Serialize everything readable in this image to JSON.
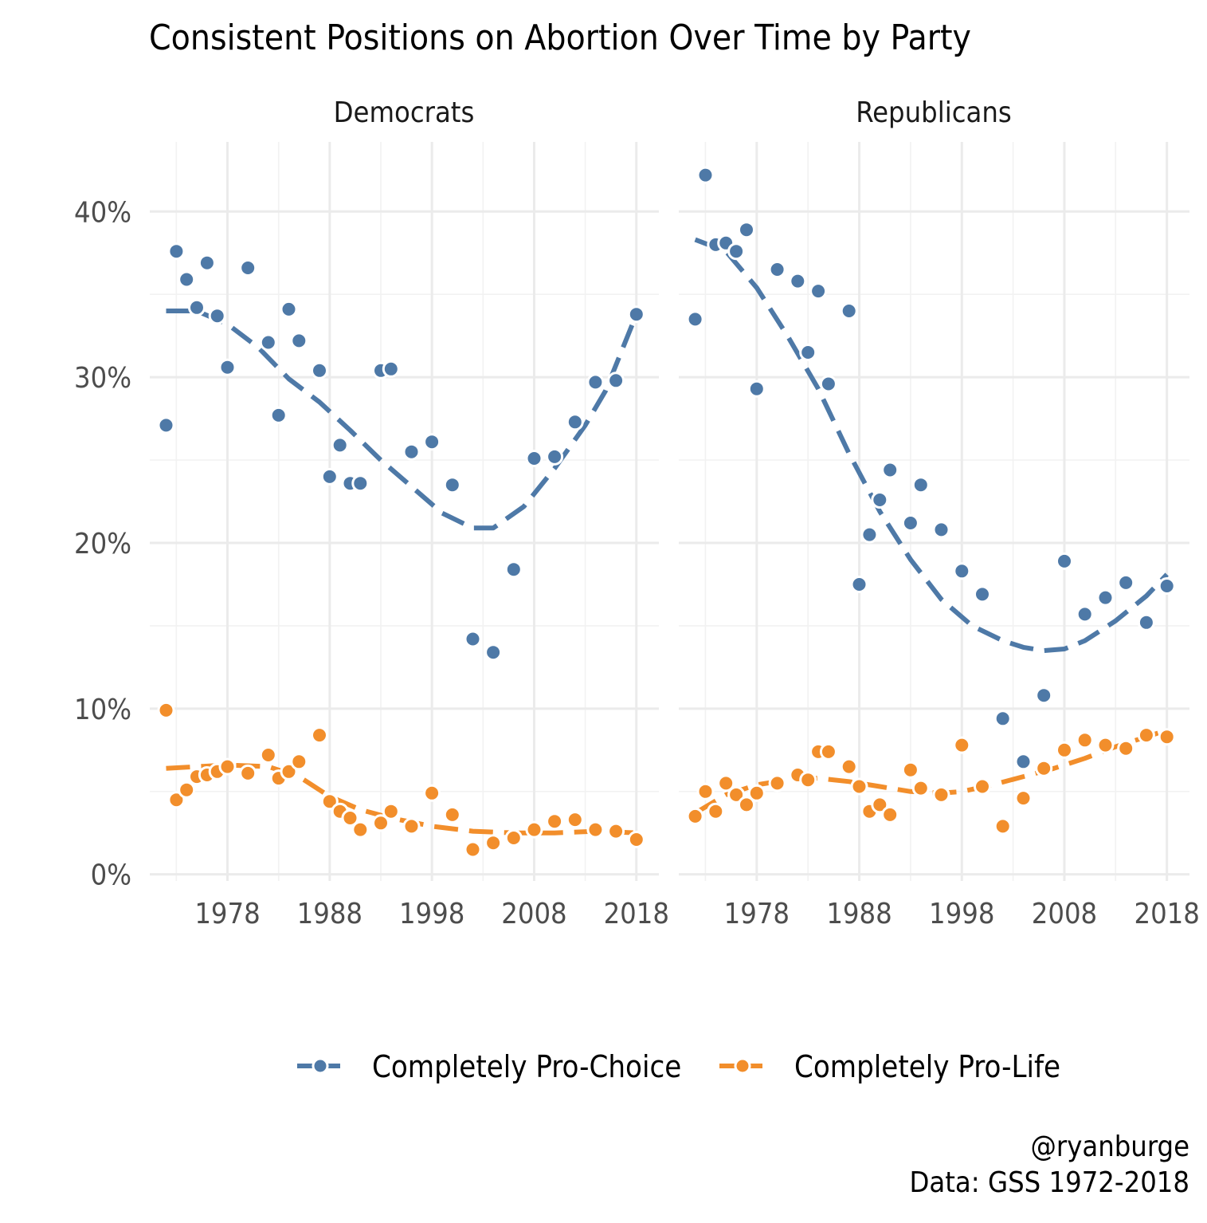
{
  "chart_data": {
    "type": "scatter",
    "title": "Consistent Positions on Abortion Over Time by Party",
    "facets": [
      "Democrats",
      "Republicans"
    ],
    "x_ticks": [
      1978,
      1988,
      1998,
      2008,
      2018
    ],
    "x_tick_labels": [
      "1978",
      "1988",
      "1998",
      "2008",
      "2018"
    ],
    "y_ticks": [
      0,
      10,
      20,
      30,
      40
    ],
    "y_tick_labels": [
      "0%",
      "10%",
      "20%",
      "30%",
      "40%"
    ],
    "xlim": [
      1970.4,
      2020.2
    ],
    "ylim": [
      -0.4,
      44.2
    ],
    "xlabel": "",
    "ylabel": "",
    "series": [
      {
        "name": "Completely Pro-Choice",
        "color": "#4e79a7",
        "line_style": "dashed smooth trend"
      },
      {
        "name": "Completely Pro-Life",
        "color": "#f28e2b",
        "line_style": "dashed smooth trend"
      }
    ],
    "panels": [
      {
        "facet": "Democrats",
        "points": {
          "Completely Pro-Choice": [
            [
              1972,
              27.1
            ],
            [
              1973,
              37.6
            ],
            [
              1974,
              35.9
            ],
            [
              1975,
              34.2
            ],
            [
              1976,
              36.9
            ],
            [
              1977,
              33.7
            ],
            [
              1978,
              30.6
            ],
            [
              1980,
              36.6
            ],
            [
              1982,
              32.1
            ],
            [
              1983,
              27.7
            ],
            [
              1984,
              34.1
            ],
            [
              1985,
              32.2
            ],
            [
              1987,
              30.4
            ],
            [
              1988,
              24.0
            ],
            [
              1989,
              25.9
            ],
            [
              1990,
              23.6
            ],
            [
              1991,
              23.6
            ],
            [
              1993,
              30.4
            ],
            [
              1994,
              30.5
            ],
            [
              1996,
              25.5
            ],
            [
              1998,
              26.1
            ],
            [
              2000,
              23.5
            ],
            [
              2002,
              14.2
            ],
            [
              2004,
              13.4
            ],
            [
              2006,
              18.4
            ],
            [
              2008,
              25.1
            ],
            [
              2010,
              25.2
            ],
            [
              2012,
              27.3
            ],
            [
              2014,
              29.7
            ],
            [
              2016,
              29.8
            ],
            [
              2018,
              33.8
            ]
          ],
          "Completely Pro-Life": [
            [
              1972,
              9.9
            ],
            [
              1973,
              4.5
            ],
            [
              1974,
              5.1
            ],
            [
              1975,
              5.9
            ],
            [
              1976,
              6.0
            ],
            [
              1977,
              6.2
            ],
            [
              1978,
              6.5
            ],
            [
              1980,
              6.1
            ],
            [
              1982,
              7.2
            ],
            [
              1983,
              5.8
            ],
            [
              1984,
              6.2
            ],
            [
              1985,
              6.8
            ],
            [
              1987,
              8.4
            ],
            [
              1988,
              4.4
            ],
            [
              1989,
              3.8
            ],
            [
              1990,
              3.4
            ],
            [
              1991,
              2.7
            ],
            [
              1993,
              3.1
            ],
            [
              1994,
              3.8
            ],
            [
              1996,
              2.9
            ],
            [
              1998,
              4.9
            ],
            [
              2000,
              3.6
            ],
            [
              2002,
              1.5
            ],
            [
              2004,
              1.9
            ],
            [
              2006,
              2.2
            ],
            [
              2008,
              2.7
            ],
            [
              2010,
              3.2
            ],
            [
              2012,
              3.3
            ],
            [
              2014,
              2.7
            ],
            [
              2016,
              2.6
            ],
            [
              2018,
              2.1
            ]
          ]
        },
        "trend": {
          "Completely Pro-Choice": [
            [
              1972,
              34.0
            ],
            [
              1973,
              34.0
            ],
            [
              1975,
              34.0
            ],
            [
              1978,
              33.2
            ],
            [
              1981,
              31.8
            ],
            [
              1984,
              29.9
            ],
            [
              1987,
              28.5
            ],
            [
              1990,
              26.8
            ],
            [
              1993,
              25.0
            ],
            [
              1996,
              23.4
            ],
            [
              1999,
              21.8
            ],
            [
              2002,
              20.9
            ],
            [
              2004,
              20.9
            ],
            [
              2007,
              22.2
            ],
            [
              2010,
              24.5
            ],
            [
              2013,
              27.1
            ],
            [
              2015,
              29.2
            ],
            [
              2018,
              33.8
            ]
          ],
          "Completely Pro-Life": [
            [
              1972,
              6.4
            ],
            [
              1975,
              6.5
            ],
            [
              1978,
              6.6
            ],
            [
              1982,
              6.5
            ],
            [
              1985,
              5.9
            ],
            [
              1988,
              4.7
            ],
            [
              1991,
              3.9
            ],
            [
              1994,
              3.4
            ],
            [
              1998,
              2.9
            ],
            [
              2002,
              2.6
            ],
            [
              2006,
              2.5
            ],
            [
              2010,
              2.5
            ],
            [
              2014,
              2.6
            ],
            [
              2018,
              2.5
            ]
          ]
        }
      },
      {
        "facet": "Republicans",
        "points": {
          "Completely Pro-Choice": [
            [
              1972,
              33.5
            ],
            [
              1973,
              42.2
            ],
            [
              1974,
              38.0
            ],
            [
              1975,
              38.1
            ],
            [
              1976,
              37.6
            ],
            [
              1977,
              38.9
            ],
            [
              1978,
              29.3
            ],
            [
              1980,
              36.5
            ],
            [
              1982,
              35.8
            ],
            [
              1983,
              31.5
            ],
            [
              1984,
              35.2
            ],
            [
              1985,
              29.6
            ],
            [
              1987,
              34.0
            ],
            [
              1988,
              17.5
            ],
            [
              1989,
              20.5
            ],
            [
              1990,
              22.6
            ],
            [
              1991,
              24.4
            ],
            [
              1993,
              21.2
            ],
            [
              1994,
              23.5
            ],
            [
              1996,
              20.8
            ],
            [
              1998,
              18.3
            ],
            [
              2000,
              16.9
            ],
            [
              2002,
              9.4
            ],
            [
              2004,
              6.8
            ],
            [
              2006,
              10.8
            ],
            [
              2008,
              18.9
            ],
            [
              2010,
              15.7
            ],
            [
              2012,
              16.7
            ],
            [
              2014,
              17.6
            ],
            [
              2016,
              15.2
            ],
            [
              2018,
              17.4
            ]
          ],
          "Completely Pro-Life": [
            [
              1972,
              3.5
            ],
            [
              1973,
              5.0
            ],
            [
              1974,
              3.8
            ],
            [
              1975,
              5.5
            ],
            [
              1976,
              4.8
            ],
            [
              1977,
              4.2
            ],
            [
              1978,
              4.9
            ],
            [
              1980,
              5.5
            ],
            [
              1982,
              6.0
            ],
            [
              1983,
              5.7
            ],
            [
              1984,
              7.4
            ],
            [
              1985,
              7.4
            ],
            [
              1987,
              6.5
            ],
            [
              1988,
              5.3
            ],
            [
              1989,
              3.8
            ],
            [
              1990,
              4.2
            ],
            [
              1991,
              3.6
            ],
            [
              1993,
              6.3
            ],
            [
              1994,
              5.2
            ],
            [
              1996,
              4.8
            ],
            [
              1998,
              7.8
            ],
            [
              2000,
              5.3
            ],
            [
              2002,
              2.9
            ],
            [
              2004,
              4.6
            ],
            [
              2006,
              6.4
            ],
            [
              2008,
              7.5
            ],
            [
              2010,
              8.1
            ],
            [
              2012,
              7.8
            ],
            [
              2014,
              7.6
            ],
            [
              2016,
              8.4
            ],
            [
              2018,
              8.3
            ]
          ]
        },
        "trend": {
          "Completely Pro-Choice": [
            [
              1972,
              38.3
            ],
            [
              1975,
              37.6
            ],
            [
              1978,
              35.4
            ],
            [
              1981,
              32.5
            ],
            [
              1984,
              29.3
            ],
            [
              1987,
              25.4
            ],
            [
              1990,
              21.9
            ],
            [
              1993,
              19.0
            ],
            [
              1996,
              16.6
            ],
            [
              1999,
              15.0
            ],
            [
              2002,
              14.1
            ],
            [
              2004,
              13.7
            ],
            [
              2006,
              13.5
            ],
            [
              2008,
              13.6
            ],
            [
              2010,
              14.1
            ],
            [
              2013,
              15.3
            ],
            [
              2016,
              16.8
            ],
            [
              2018,
              18.1
            ]
          ],
          "Completely Pro-Life": [
            [
              1972,
              3.7
            ],
            [
              1975,
              4.8
            ],
            [
              1978,
              5.4
            ],
            [
              1981,
              5.7
            ],
            [
              1984,
              5.8
            ],
            [
              1987,
              5.6
            ],
            [
              1990,
              5.3
            ],
            [
              1993,
              5.0
            ],
            [
              1996,
              4.9
            ],
            [
              1998,
              5.0
            ],
            [
              2001,
              5.4
            ],
            [
              2004,
              5.9
            ],
            [
              2007,
              6.4
            ],
            [
              2010,
              7.0
            ],
            [
              2013,
              7.7
            ],
            [
              2016,
              8.3
            ],
            [
              2018,
              8.7
            ]
          ]
        }
      }
    ],
    "legend": {
      "position": "bottom",
      "entries": [
        "Completely Pro-Choice",
        "Completely Pro-Life"
      ]
    },
    "caption": [
      "@ryanburge",
      "Data: GSS 1972-2018"
    ]
  }
}
